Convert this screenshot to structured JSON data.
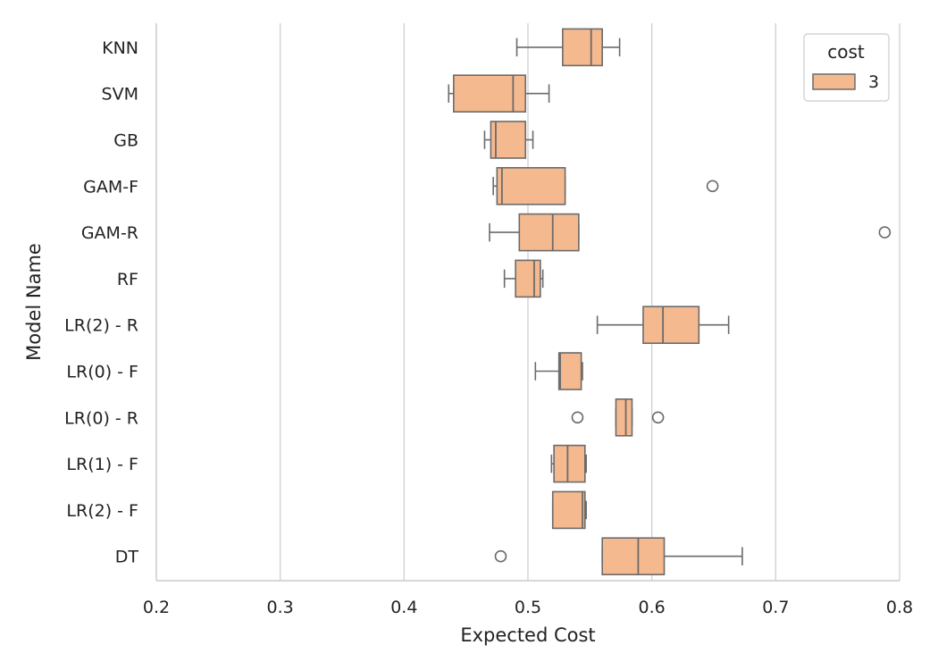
{
  "chart_data": {
    "type": "boxplot",
    "orientation": "horizontal",
    "xlabel": "Expected Cost",
    "ylabel": "Model Name",
    "xlim": [
      0.2,
      0.8
    ],
    "xticks": [
      0.2,
      0.3,
      0.4,
      0.5,
      0.6,
      0.7,
      0.8
    ],
    "xtick_labels": [
      "0.2",
      "0.3",
      "0.4",
      "0.5",
      "0.6",
      "0.7",
      "0.8"
    ],
    "grid": "vertical gridlines",
    "legend": {
      "title": "cost",
      "placement": "top-right",
      "entries": [
        {
          "label": "3",
          "color": "#f5b98f"
        }
      ]
    },
    "box_fill": "#f5b98f",
    "line_color": "#6b6b6b",
    "grid_color": "#d0d0d0",
    "categories": [
      "KNN",
      "SVM",
      "GB",
      "GAM-F",
      "GAM-R",
      "RF",
      "LR(2) - R",
      "LR(0) - F",
      "LR(0) - R",
      "LR(1) - F",
      "LR(2) - F",
      "DT"
    ],
    "boxes": [
      {
        "category": "KNN",
        "whisker_low": 0.491,
        "q1": 0.528,
        "median": 0.551,
        "q3": 0.56,
        "whisker_high": 0.574,
        "outliers": []
      },
      {
        "category": "SVM",
        "whisker_low": 0.436,
        "q1": 0.44,
        "median": 0.488,
        "q3": 0.498,
        "whisker_high": 0.517,
        "outliers": []
      },
      {
        "category": "GB",
        "whisker_low": 0.465,
        "q1": 0.47,
        "median": 0.474,
        "q3": 0.498,
        "whisker_high": 0.504,
        "outliers": []
      },
      {
        "category": "GAM-F",
        "whisker_low": 0.472,
        "q1": 0.475,
        "median": 0.479,
        "q3": 0.53,
        "whisker_high": 0.53,
        "outliers": [
          0.649
        ]
      },
      {
        "category": "GAM-R",
        "whisker_low": 0.469,
        "q1": 0.493,
        "median": 0.52,
        "q3": 0.541,
        "whisker_high": 0.541,
        "outliers": [
          0.788
        ]
      },
      {
        "category": "RF",
        "whisker_low": 0.481,
        "q1": 0.49,
        "median": 0.505,
        "q3": 0.51,
        "whisker_high": 0.512,
        "outliers": []
      },
      {
        "category": "LR(2) - R",
        "whisker_low": 0.556,
        "q1": 0.593,
        "median": 0.609,
        "q3": 0.638,
        "whisker_high": 0.662,
        "outliers": []
      },
      {
        "category": "LR(0) - F",
        "whisker_low": 0.506,
        "q1": 0.525,
        "median": 0.526,
        "q3": 0.543,
        "whisker_high": 0.544,
        "outliers": []
      },
      {
        "category": "LR(0) - R",
        "whisker_low": 0.571,
        "q1": 0.571,
        "median": 0.579,
        "q3": 0.584,
        "whisker_high": 0.584,
        "outliers": [
          0.54,
          0.605
        ]
      },
      {
        "category": "LR(1) - F",
        "whisker_low": 0.519,
        "q1": 0.521,
        "median": 0.532,
        "q3": 0.546,
        "whisker_high": 0.547,
        "outliers": []
      },
      {
        "category": "LR(2) - F",
        "whisker_low": 0.52,
        "q1": 0.52,
        "median": 0.544,
        "q3": 0.546,
        "whisker_high": 0.547,
        "outliers": []
      },
      {
        "category": "DT",
        "whisker_low": 0.56,
        "q1": 0.56,
        "median": 0.589,
        "q3": 0.61,
        "whisker_high": 0.673,
        "outliers": [
          0.478
        ]
      }
    ]
  }
}
